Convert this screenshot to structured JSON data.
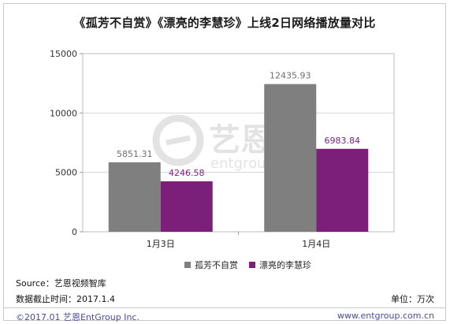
{
  "title": "《孤芳不自赏》《漂亮的李慧珍》上线2日网络播放量对比",
  "watermark": {
    "cn": "艺恩",
    "en": "entgroup"
  },
  "chart_data": {
    "type": "bar",
    "categories": [
      "1月3日",
      "1月4日"
    ],
    "series": [
      {
        "name": "孤芳不自赏",
        "values": [
          5851.31,
          12435.93
        ],
        "labels": [
          "5851.31",
          "12435.93"
        ],
        "color": "#7f7f7f"
      },
      {
        "name": "漂亮的李慧珍",
        "values": [
          4246.58,
          6983.84
        ],
        "labels": [
          "4246.58",
          "6983.84"
        ],
        "color": "#7b1f7a"
      }
    ],
    "ylim": [
      0,
      15000
    ],
    "yticks": [
      "0",
      "5000",
      "10000",
      "15000"
    ],
    "grid": true,
    "legend_position": "bottom"
  },
  "footer": {
    "source": "Source：艺恩视频智库",
    "cutoff": "数据截止时间：2017.1.4",
    "unit": "单位：万次",
    "copyright": "©2017.01 艺恩EntGroup Inc.",
    "website": "www.entgroup.com.cn"
  }
}
